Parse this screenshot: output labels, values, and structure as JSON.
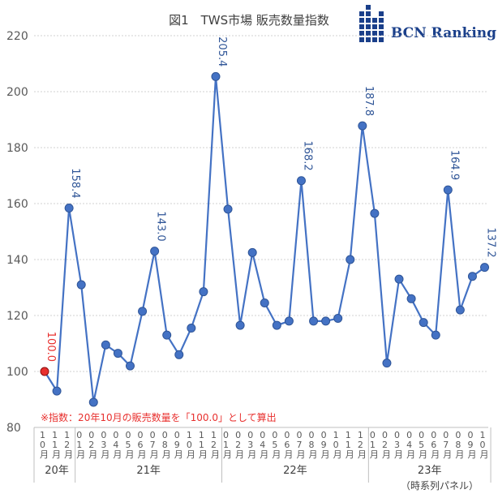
{
  "chart_data": {
    "type": "line",
    "title": "図1　TWS市場 販売数量指数",
    "x": [
      "20-10",
      "20-11",
      "20-12",
      "21-01",
      "21-02",
      "21-03",
      "21-04",
      "21-05",
      "21-06",
      "21-07",
      "21-08",
      "21-09",
      "21-10",
      "21-11",
      "21-12",
      "22-01",
      "22-02",
      "22-03",
      "22-04",
      "22-05",
      "22-06",
      "22-07",
      "22-08",
      "22-09",
      "22-10",
      "22-11",
      "22-12",
      "23-01",
      "23-02",
      "23-03",
      "23-04",
      "23-05",
      "23-06",
      "23-07",
      "23-08",
      "23-09",
      "23-10"
    ],
    "x_tick_labels": [
      "10月",
      "11月",
      "12月",
      "01月",
      "02月",
      "03月",
      "04月",
      "05月",
      "06月",
      "07月",
      "08月",
      "09月",
      "10月",
      "11月",
      "12月",
      "01月",
      "02月",
      "03月",
      "04月",
      "05月",
      "06月",
      "07月",
      "08月",
      "09月",
      "10月",
      "11月",
      "12月",
      "01月",
      "02月",
      "03月",
      "04月",
      "05月",
      "06月",
      "07月",
      "08月",
      "09月",
      "10月"
    ],
    "years": [
      {
        "label": "20年",
        "start": 0,
        "end": 2
      },
      {
        "label": "21年",
        "start": 3,
        "end": 14
      },
      {
        "label": "22年",
        "start": 15,
        "end": 26
      },
      {
        "label": "23年",
        "start": 27,
        "end": 36
      }
    ],
    "series": [
      {
        "values": [
          100.0,
          93,
          158.4,
          131,
          89,
          109.5,
          106.5,
          102,
          121.5,
          143.0,
          113,
          106,
          115.5,
          128.5,
          205.4,
          158,
          116.5,
          142.5,
          124.5,
          116.5,
          118,
          168.2,
          118,
          118,
          119,
          140,
          187.8,
          156.5,
          103,
          133,
          126,
          117.5,
          113,
          164.9,
          122,
          134,
          137.2
        ],
        "color": "#4472c4"
      }
    ],
    "data_labels": [
      {
        "index": 0,
        "text": "100.0"
      },
      {
        "index": 2,
        "text": "158.4"
      },
      {
        "index": 9,
        "text": "143.0"
      },
      {
        "index": 14,
        "text": "205.4"
      },
      {
        "index": 21,
        "text": "168.2"
      },
      {
        "index": 26,
        "text": "187.8"
      },
      {
        "index": 33,
        "text": "164.9"
      },
      {
        "index": 36,
        "text": "137.2"
      }
    ],
    "ylim": [
      80,
      220
    ],
    "yticks": [
      80,
      100,
      120,
      140,
      160,
      180,
      200,
      220
    ],
    "grid": true,
    "highlight_first_point_color": "#e8302e"
  },
  "note": "※指数：20年10月の販売数量を「100.0」として算出",
  "panel_label": "（時系列パネル）",
  "logo_text": "BCN Ranking",
  "colors": {
    "line": "#4472c4",
    "grid": "#d0d0d0",
    "accent": "#e8302e",
    "logo": "#1a3f8a"
  }
}
